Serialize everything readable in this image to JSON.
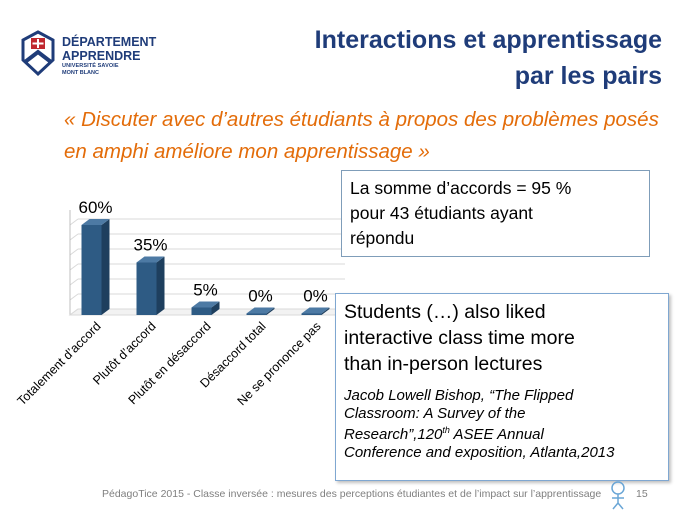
{
  "header": {
    "title_line1": "Interactions et apprentissage",
    "title_line2": "par les pairs"
  },
  "logo": {
    "line1": "DÉPARTEMENT",
    "line2": "APPRENDRE",
    "line3": "UNIVERSITÉ SAVOIE",
    "line4": "MONT BLANC"
  },
  "quote": {
    "text": "« Discuter avec d’autres étudiants à propos des problèmes posés en amphi améliore mon apprentissage »"
  },
  "info_box": {
    "text_line1": "La somme d’accords = 95 %",
    "text_line2": "pour 43 étudiants ayant",
    "text_line3": "répondu"
  },
  "reference_box": {
    "main_line1": "Students (…) also liked",
    "main_line2": "interactive class time more",
    "main_line3": "than in-person lectures",
    "cite_line1": "Jacob Lowell Bishop, “The Flipped",
    "cite_line2": "Classroom: A Survey of the",
    "cite_line3_pre": "Research”,120",
    "cite_line3_sup": "th",
    "cite_line3_post": " ASEE Annual",
    "cite_line4": "Conference and exposition, Atlanta,2013"
  },
  "footer": {
    "text": "PédagoTice 2015 - Classe inversée : mesures des perceptions étudiantes et de l’impact sur l’apprentissage",
    "page_number": "15"
  },
  "colors": {
    "bar_front": "#2e5b84",
    "bar_side": "#1e3f5e",
    "bar_top": "#4d7aa4",
    "title": "#1f3c79",
    "quote": "#e36c09"
  },
  "chart_data": {
    "type": "bar",
    "categories": [
      "Totalement d’accord",
      "Plutôt d’accord",
      "Plutôt en désaccord",
      "Désaccord total",
      "Ne se prononce pas"
    ],
    "values": [
      60,
      35,
      5,
      0,
      0
    ],
    "data_labels": [
      "60%",
      "35%",
      "5%",
      "0%",
      "0%"
    ],
    "ylim": [
      0,
      70
    ],
    "grid": true,
    "style": "3d-column"
  }
}
